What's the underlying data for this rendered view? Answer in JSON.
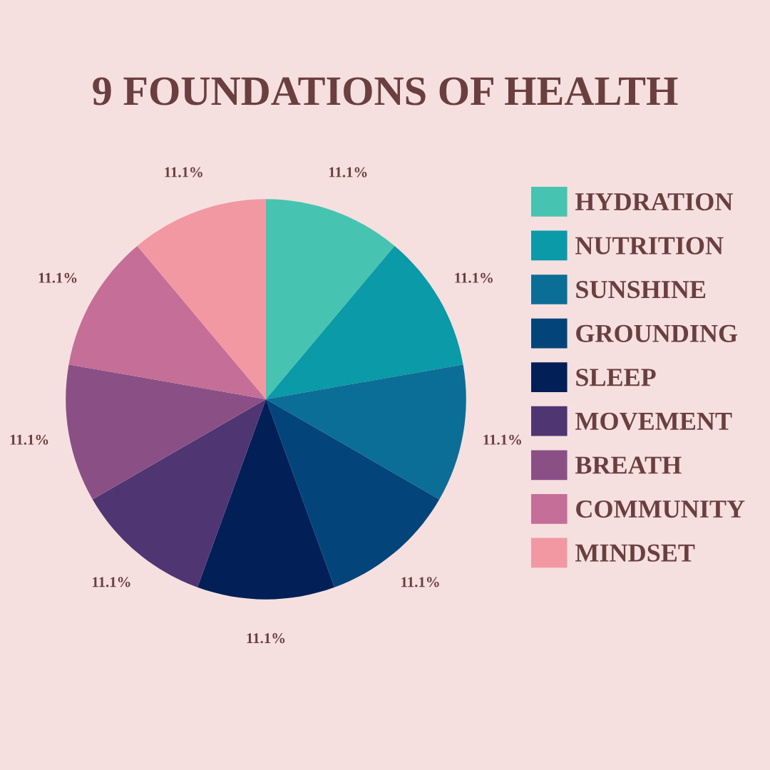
{
  "chart_data": {
    "type": "pie",
    "title": "9 FOUNDATIONS OF HEALTH",
    "categories": [
      "HYDRATION",
      "NUTRITION",
      "SUNSHINE",
      "GROUNDING",
      "SLEEP",
      "MOVEMENT",
      "BREATH",
      "COMMUNITY",
      "MINDSET"
    ],
    "values": [
      11.1,
      11.1,
      11.1,
      11.1,
      11.1,
      11.1,
      11.1,
      11.1,
      11.1
    ],
    "value_labels": [
      "11.1%",
      "11.1%",
      "11.1%",
      "11.1%",
      "11.1%",
      "11.1%",
      "11.1%",
      "11.1%",
      "11.1%"
    ],
    "colors": [
      "#46c4b1",
      "#0a9aa8",
      "#0b6e96",
      "#03457a",
      "#021f57",
      "#4f3572",
      "#8a5086",
      "#c46e98",
      "#f298a2"
    ],
    "legend": "right"
  }
}
